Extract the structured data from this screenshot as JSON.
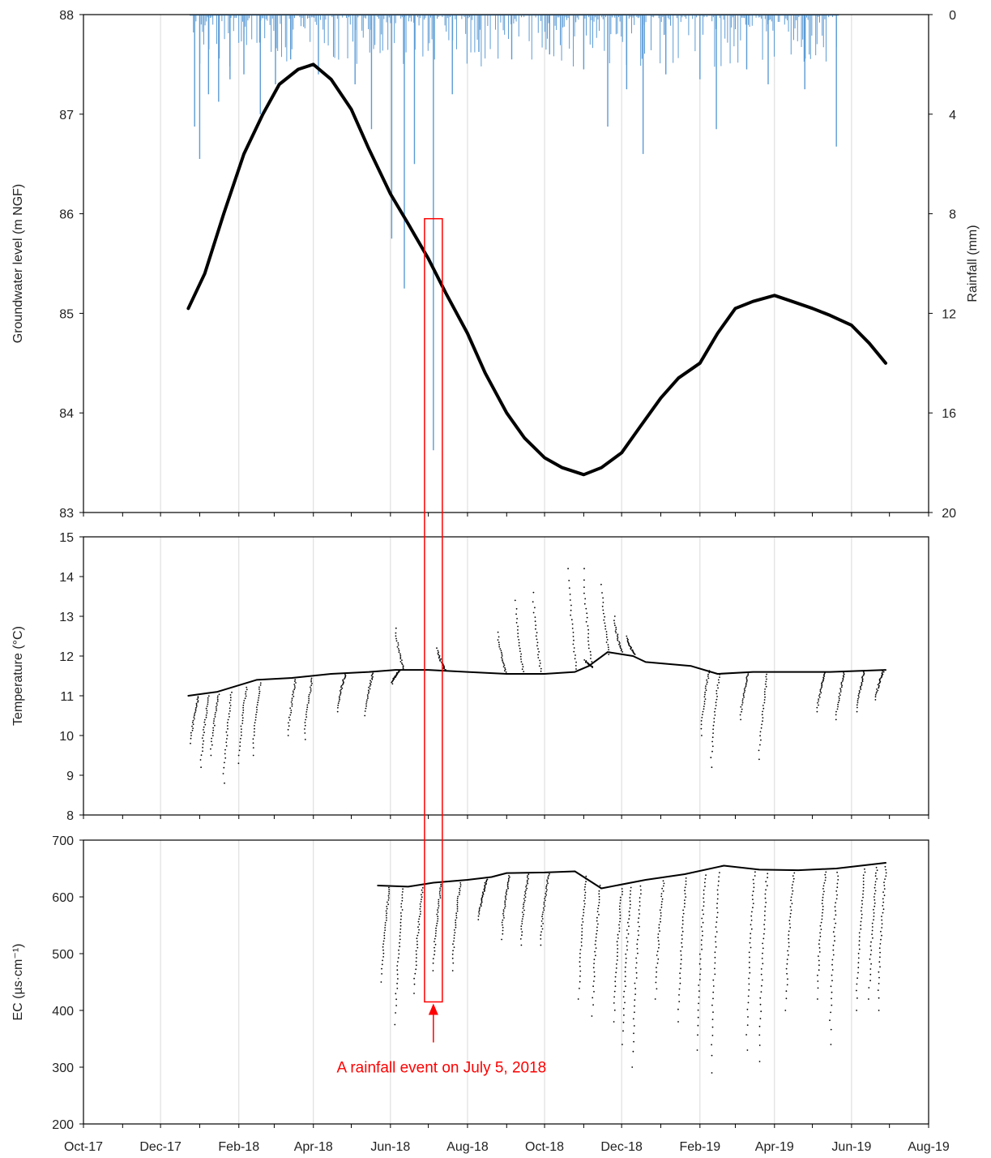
{
  "figure": {
    "x_ticks": [
      "Oct-17",
      "Dec-17",
      "Feb-18",
      "Apr-18",
      "Jun-18",
      "Aug-18",
      "Oct-18",
      "Dec-18",
      "Feb-19",
      "Apr-19",
      "Jun-19",
      "Aug-19"
    ],
    "annotation": "A rainfall event on July 5, 2018",
    "colors": {
      "rain": "#5b9bd5",
      "points": "#000000",
      "highlight": "#ff0000",
      "grid": "#d9d9d9"
    }
  },
  "chart_data": [
    {
      "type": "scatter",
      "name": "groundwater-panel",
      "ylabel": "Groundwater level (m NGF)",
      "ylim": [
        83,
        88
      ],
      "yticks": [
        "83",
        "84",
        "85",
        "86",
        "87",
        "88"
      ],
      "series": [
        {
          "points": [
            [
              "2017-12-23",
              85.05
            ],
            [
              "2018-01-05",
              85.4
            ],
            [
              "2018-01-20",
              86.0
            ],
            [
              "2018-02-05",
              86.6
            ],
            [
              "2018-02-20",
              87.0
            ],
            [
              "2018-03-05",
              87.3
            ],
            [
              "2018-03-20",
              87.45
            ],
            [
              "2018-04-01",
              87.5
            ],
            [
              "2018-04-15",
              87.35
            ],
            [
              "2018-05-01",
              87.05
            ],
            [
              "2018-05-15",
              86.65
            ],
            [
              "2018-06-01",
              86.2
            ],
            [
              "2018-06-15",
              85.9
            ],
            [
              "2018-07-01",
              85.55
            ],
            [
              "2018-07-15",
              85.2
            ],
            [
              "2018-08-01",
              84.8
            ],
            [
              "2018-08-15",
              84.4
            ],
            [
              "2018-09-01",
              84.0
            ],
            [
              "2018-09-15",
              83.75
            ],
            [
              "2018-10-01",
              83.55
            ],
            [
              "2018-10-15",
              83.45
            ],
            [
              "2018-11-01",
              83.38
            ],
            [
              "2018-11-15",
              83.45
            ],
            [
              "2018-12-01",
              83.6
            ],
            [
              "2018-12-15",
              83.85
            ],
            [
              "2019-01-01",
              84.15
            ],
            [
              "2019-01-15",
              84.35
            ],
            [
              "2019-02-01",
              84.5
            ],
            [
              "2019-02-15",
              84.8
            ],
            [
              "2019-03-01",
              85.05
            ],
            [
              "2019-03-15",
              85.12
            ],
            [
              "2019-04-01",
              85.18
            ],
            [
              "2019-04-15",
              85.12
            ],
            [
              "2019-05-01",
              85.05
            ],
            [
              "2019-05-15",
              84.98
            ],
            [
              "2019-06-01",
              84.88
            ],
            [
              "2019-06-15",
              84.7
            ],
            [
              "2019-06-28",
              84.5
            ]
          ]
        }
      ],
      "secondary_axis": {
        "ylabel": "Rainfall (mm)",
        "ylim": [
          0,
          20
        ],
        "yticks": [
          "0",
          "4",
          "8",
          "12",
          "16",
          "20"
        ],
        "inverted": true
      },
      "rainfall_events": [
        [
          "2017-12-28",
          4.5
        ],
        [
          "2018-01-01",
          5.8
        ],
        [
          "2018-01-08",
          3.2
        ],
        [
          "2018-01-16",
          3.5
        ],
        [
          "2018-01-25",
          2.6
        ],
        [
          "2018-02-05",
          2.4
        ],
        [
          "2018-02-18",
          4.0
        ],
        [
          "2018-03-02",
          2.8
        ],
        [
          "2018-03-14",
          1.8
        ],
        [
          "2018-04-05",
          2.4
        ],
        [
          "2018-05-04",
          2.8
        ],
        [
          "2018-05-17",
          4.6
        ],
        [
          "2018-06-02",
          9.0
        ],
        [
          "2018-06-12",
          11.0
        ],
        [
          "2018-06-20",
          6.0
        ],
        [
          "2018-07-05",
          17.5
        ],
        [
          "2018-07-20",
          3.2
        ],
        [
          "2018-08-10",
          1.5
        ],
        [
          "2018-09-05",
          1.8
        ],
        [
          "2018-10-05",
          1.6
        ],
        [
          "2018-11-01",
          2.2
        ],
        [
          "2018-11-20",
          4.5
        ],
        [
          "2018-12-05",
          3.0
        ],
        [
          "2018-12-18",
          5.6
        ],
        [
          "2019-01-05",
          2.4
        ],
        [
          "2019-02-01",
          2.6
        ],
        [
          "2019-02-14",
          4.6
        ],
        [
          "2019-03-10",
          2.2
        ],
        [
          "2019-03-27",
          2.8
        ],
        [
          "2019-04-25",
          3.0
        ],
        [
          "2019-05-20",
          5.3
        ]
      ]
    },
    {
      "type": "scatter",
      "name": "temperature-panel",
      "ylabel": "Temperature (°C)",
      "ylim": [
        8,
        15
      ],
      "yticks": [
        "8",
        "9",
        "10",
        "11",
        "12",
        "13",
        "14",
        "15"
      ],
      "series": [
        {
          "points": [
            [
              "2017-12-23",
              11.0
            ],
            [
              "2018-01-15",
              11.1
            ],
            [
              "2018-02-15",
              11.4
            ],
            [
              "2018-03-15",
              11.45
            ],
            [
              "2018-04-15",
              11.55
            ],
            [
              "2018-05-15",
              11.6
            ],
            [
              "2018-06-05",
              11.65
            ],
            [
              "2018-07-01",
              11.65
            ],
            [
              "2018-08-01",
              11.6
            ],
            [
              "2018-09-01",
              11.55
            ],
            [
              "2018-10-01",
              11.55
            ],
            [
              "2018-10-25",
              11.6
            ],
            [
              "2018-11-05",
              11.75
            ],
            [
              "2018-11-20",
              12.1
            ],
            [
              "2018-12-10",
              12.0
            ],
            [
              "2018-12-20",
              11.85
            ],
            [
              "2019-01-25",
              11.75
            ],
            [
              "2019-02-15",
              11.55
            ],
            [
              "2019-03-15",
              11.6
            ],
            [
              "2019-04-15",
              11.6
            ],
            [
              "2019-05-15",
              11.6
            ],
            [
              "2019-06-28",
              11.65
            ]
          ]
        }
      ],
      "drops": [
        [
          "2017-12-25",
          9.8
        ],
        [
          "2018-01-02",
          9.2
        ],
        [
          "2018-01-10",
          9.5
        ],
        [
          "2018-01-20",
          8.8
        ],
        [
          "2018-02-01",
          9.3
        ],
        [
          "2018-02-12",
          9.5
        ],
        [
          "2018-03-12",
          10.0
        ],
        [
          "2018-03-25",
          9.9
        ],
        [
          "2018-04-20",
          10.6
        ],
        [
          "2018-05-12",
          10.5
        ],
        [
          "2018-06-02",
          11.3
        ],
        [
          "2018-11-02",
          11.9
        ],
        [
          "2019-02-02",
          10.0
        ],
        [
          "2019-02-10",
          9.2
        ],
        [
          "2019-03-05",
          10.4
        ],
        [
          "2019-03-20",
          9.4
        ],
        [
          "2019-05-05",
          10.6
        ],
        [
          "2019-05-20",
          10.4
        ],
        [
          "2019-06-05",
          10.6
        ],
        [
          "2019-06-20",
          10.9
        ]
      ],
      "spikes": [
        [
          "2018-06-05",
          12.7
        ],
        [
          "2018-07-08",
          12.2
        ],
        [
          "2018-08-25",
          12.6
        ],
        [
          "2018-09-08",
          13.4
        ],
        [
          "2018-09-22",
          13.6
        ],
        [
          "2018-10-20",
          14.2
        ],
        [
          "2018-11-01",
          14.2
        ],
        [
          "2018-11-15",
          13.8
        ],
        [
          "2018-11-25",
          13.0
        ],
        [
          "2018-12-05",
          12.5
        ]
      ]
    },
    {
      "type": "scatter",
      "name": "ec-panel",
      "ylabel": "EC (µs·cm⁻¹)",
      "ylim": [
        200,
        700
      ],
      "yticks": [
        "200",
        "300",
        "400",
        "500",
        "600",
        "700"
      ],
      "series": [
        {
          "points": [
            [
              "2018-05-22",
              620
            ],
            [
              "2018-06-15",
              618
            ],
            [
              "2018-07-05",
              625
            ],
            [
              "2018-08-01",
              630
            ],
            [
              "2018-08-20",
              635
            ],
            [
              "2018-09-01",
              642
            ],
            [
              "2018-10-01",
              643
            ],
            [
              "2018-10-25",
              645
            ],
            [
              "2018-11-15",
              615
            ],
            [
              "2018-12-20",
              630
            ],
            [
              "2019-01-20",
              640
            ],
            [
              "2019-02-20",
              655
            ],
            [
              "2019-03-20",
              648
            ],
            [
              "2019-04-20",
              647
            ],
            [
              "2019-05-20",
              650
            ],
            [
              "2019-06-28",
              660
            ]
          ]
        }
      ],
      "drops": [
        [
          "2018-05-25",
          450
        ],
        [
          "2018-06-05",
          375
        ],
        [
          "2018-06-20",
          430
        ],
        [
          "2018-07-05",
          470
        ],
        [
          "2018-07-20",
          470
        ],
        [
          "2018-08-10",
          560
        ],
        [
          "2018-08-28",
          525
        ],
        [
          "2018-09-12",
          515
        ],
        [
          "2018-09-28",
          515
        ],
        [
          "2018-10-28",
          420
        ],
        [
          "2018-11-08",
          390
        ],
        [
          "2018-11-25",
          380
        ],
        [
          "2018-12-02",
          340
        ],
        [
          "2018-12-10",
          300
        ],
        [
          "2018-12-28",
          420
        ],
        [
          "2019-01-15",
          380
        ],
        [
          "2019-01-30",
          330
        ],
        [
          "2019-02-10",
          290
        ],
        [
          "2019-03-10",
          330
        ],
        [
          "2019-03-20",
          310
        ],
        [
          "2019-04-10",
          400
        ],
        [
          "2019-05-05",
          420
        ],
        [
          "2019-05-15",
          340
        ],
        [
          "2019-06-05",
          400
        ],
        [
          "2019-06-15",
          420
        ],
        [
          "2019-06-22",
          400
        ]
      ]
    }
  ]
}
